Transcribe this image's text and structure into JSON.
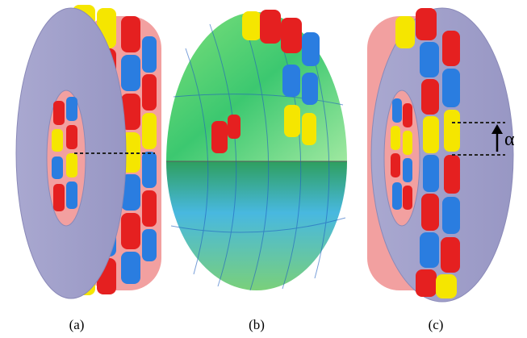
{
  "panels": [
    {
      "label": "(a)"
    },
    {
      "label": "(b)"
    },
    {
      "label": "(c)",
      "annotation": "α"
    }
  ]
}
